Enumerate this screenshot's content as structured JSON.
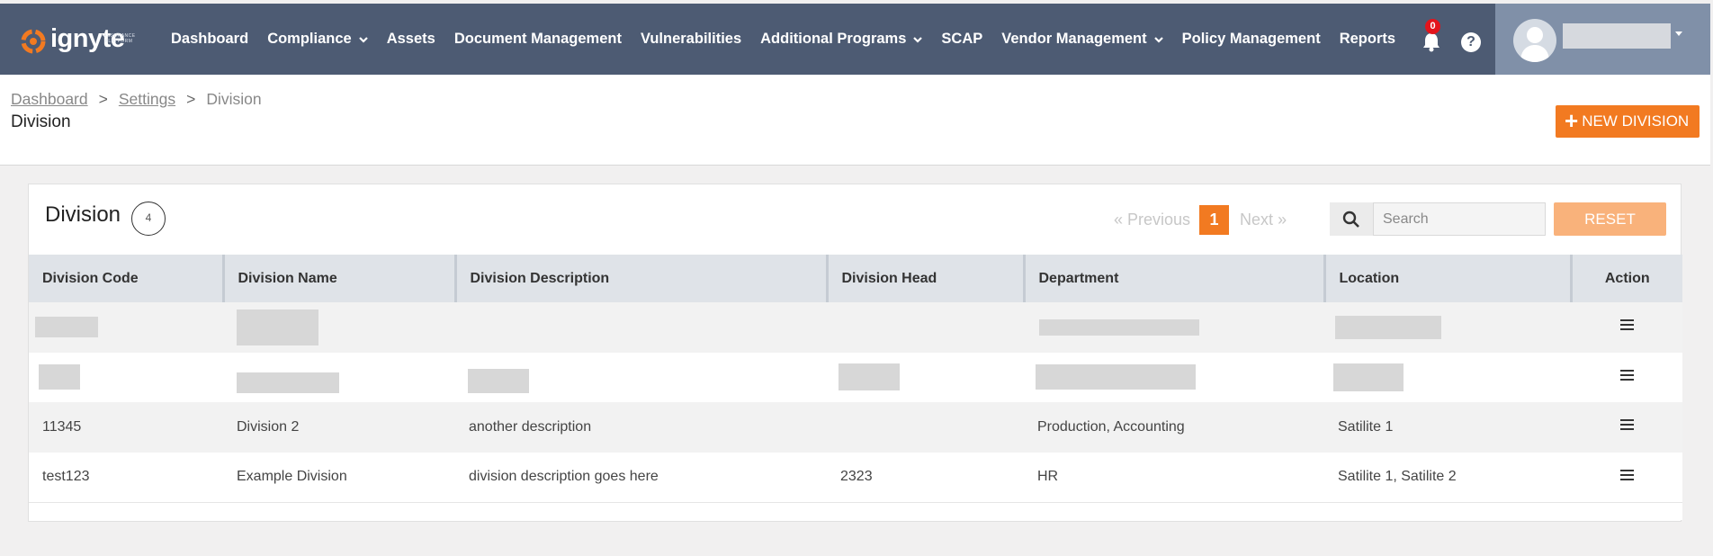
{
  "brand": {
    "name": "ignyte",
    "subtitle": "ASSURANCE PLATFORM"
  },
  "nav": {
    "items": [
      {
        "label": "Dashboard",
        "has_dropdown": false
      },
      {
        "label": "Compliance",
        "has_dropdown": true
      },
      {
        "label": "Assets",
        "has_dropdown": false
      },
      {
        "label": "Document Management",
        "has_dropdown": false
      },
      {
        "label": "Vulnerabilities",
        "has_dropdown": false
      },
      {
        "label": "Additional Programs",
        "has_dropdown": true
      },
      {
        "label": "SCAP",
        "has_dropdown": false
      },
      {
        "label": "Vendor Management",
        "has_dropdown": true
      },
      {
        "label": "Policy Management",
        "has_dropdown": false
      },
      {
        "label": "Reports",
        "has_dropdown": false
      }
    ],
    "notification_count": "0",
    "help_label": "?"
  },
  "breadcrumb": {
    "items": [
      "Dashboard",
      "Settings",
      "Division"
    ],
    "separator": ">"
  },
  "page": {
    "title": "Division",
    "new_button_label": "NEW DIVISION"
  },
  "card": {
    "title": "Division",
    "count": "4"
  },
  "pager": {
    "prev_label": "Previous",
    "current_page": "1",
    "next_label": "Next"
  },
  "search": {
    "placeholder": "Search",
    "value": "",
    "reset_label": "RESET"
  },
  "table": {
    "columns": [
      "Division Code",
      "Division Name",
      "Division Description",
      "Division Head",
      "Department",
      "Location",
      "Action"
    ],
    "rows": [
      {
        "code": "",
        "name": "",
        "description": "",
        "head": "",
        "department": "",
        "location": ""
      },
      {
        "code": "",
        "name": "",
        "description": "",
        "head": "",
        "department": "",
        "location": ""
      },
      {
        "code": "11345",
        "name": "Division 2",
        "description": "another description",
        "head": "",
        "department": "Production, Accounting",
        "location": "Satilite 1"
      },
      {
        "code": "test123",
        "name": "Example Division",
        "description": "division description goes here",
        "head": "2323",
        "department": "HR",
        "location": "Satilite 1, Satilite 2"
      }
    ]
  },
  "colors": {
    "nav_bg": "#4d5b73",
    "accent": "#f27a21",
    "reset_bg": "#f9b27b",
    "badge": "#e3141c"
  }
}
